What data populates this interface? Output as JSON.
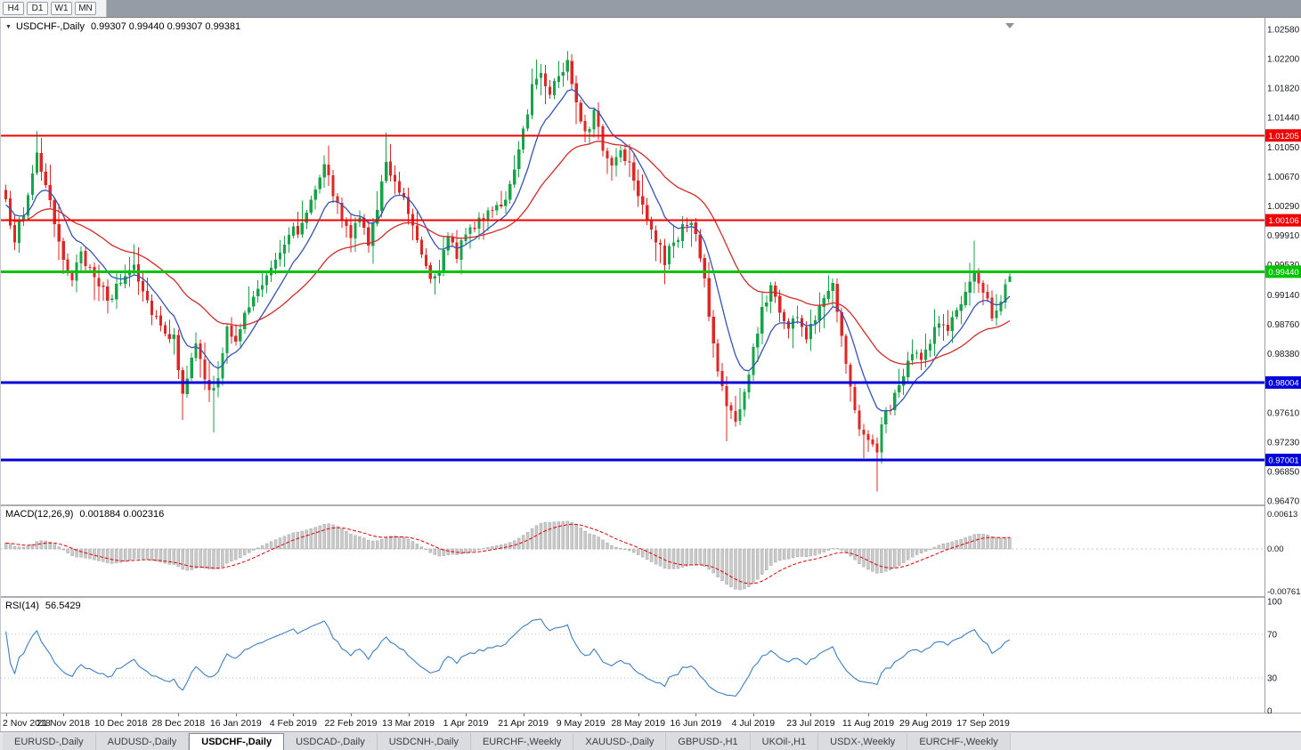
{
  "toolbar": {
    "timeframes": [
      "H4",
      "D1",
      "W1",
      "MN"
    ]
  },
  "chart": {
    "symbol_period": "USDCHF-,Daily",
    "quotes": "0.99307 0.99440 0.99307 0.99381"
  },
  "indicators": {
    "macd": {
      "name": "MACD(12,26,9)",
      "values": "0.001884 0.002316",
      "axis_labels": [
        "0.00613",
        "0.00",
        "-0.007612"
      ]
    },
    "rsi": {
      "name": "RSI(14)",
      "value": "56.5429",
      "axis_labels": [
        "100",
        "70",
        "30",
        "0"
      ],
      "levels": [
        70,
        30
      ]
    }
  },
  "price_axis": {
    "ticks": [
      "1.02580",
      "1.02200",
      "1.01820",
      "1.01440",
      "1.01050",
      "1.00670",
      "1.00290",
      "0.99910",
      "0.99530",
      "0.99140",
      "0.98760",
      "0.98380",
      "0.97610",
      "0.97230",
      "0.96850",
      "0.96470"
    ]
  },
  "levels": [
    {
      "price": 1.01205,
      "label": "1.01205",
      "color": "#f00000",
      "width": 2,
      "kind": "resistance"
    },
    {
      "price": 1.00106,
      "label": "1.00106",
      "color": "#f00000",
      "width": 2,
      "kind": "resistance"
    },
    {
      "price": 0.9944,
      "label": "0.99440",
      "color": "#00c400",
      "width": 3,
      "kind": "current-level"
    },
    {
      "price": 0.98004,
      "label": "0.98004",
      "color": "#0000dc",
      "width": 3,
      "kind": "support"
    },
    {
      "price": 0.97001,
      "label": "0.97001",
      "color": "#0000dc",
      "width": 3,
      "kind": "support"
    }
  ],
  "date_axis": [
    {
      "label": "2 Nov 2018",
      "i": 0
    },
    {
      "label": "21 Nov 2018",
      "i": 13
    },
    {
      "label": "10 Dec 2018",
      "i": 26
    },
    {
      "label": "28 Dec 2018",
      "i": 39
    },
    {
      "label": "16 Jan 2019",
      "i": 52
    },
    {
      "label": "4 Feb 2019",
      "i": 65
    },
    {
      "label": "22 Feb 2019",
      "i": 78
    },
    {
      "label": "13 Mar 2019",
      "i": 91
    },
    {
      "label": "1 Apr 2019",
      "i": 104
    },
    {
      "label": "21 Apr 2019",
      "i": 117
    },
    {
      "label": "9 May 2019",
      "i": 130
    },
    {
      "label": "28 May 2019",
      "i": 143
    },
    {
      "label": "16 Jun 2019",
      "i": 156
    },
    {
      "label": "4 Jul 2019",
      "i": 169
    },
    {
      "label": "23 Jul 2019",
      "i": 182
    },
    {
      "label": "11 Aug 2019",
      "i": 195
    },
    {
      "label": "29 Aug 2019",
      "i": 208
    },
    {
      "label": "17 Sep 2019",
      "i": 221
    }
  ],
  "tabs": [
    {
      "label": "EURUSD-,Daily",
      "active": false
    },
    {
      "label": "AUDUSD-,Daily",
      "active": false
    },
    {
      "label": "USDCHF-,Daily",
      "active": true
    },
    {
      "label": "USDCAD-,Daily",
      "active": false
    },
    {
      "label": "USDCNH-,Daily",
      "active": false
    },
    {
      "label": "EURCHF-,Weekly",
      "active": false
    },
    {
      "label": "XAUUSD-,Daily",
      "active": false
    },
    {
      "label": "GBPUSD-,H1",
      "active": false
    },
    {
      "label": "UKOil-,H1",
      "active": false
    },
    {
      "label": "USDX-,Weekly",
      "active": false
    },
    {
      "label": "EURCHF-,Weekly",
      "active": false
    }
  ],
  "colors": {
    "candle_up": "#17a348",
    "candle_down": "#e02525",
    "ma_fast": "#3353b8",
    "ma_slow": "#d42a2a",
    "macd_hist": "#c9c9c9",
    "macd_hist_edge": "#9b9b9b",
    "macd_signal": "#e00000",
    "rsi_line": "#3e7fc1",
    "level_red": "#f00000",
    "level_green": "#00c400",
    "level_blue": "#0000dc",
    "badge_text": "#ffffff"
  },
  "chart_data": {
    "type": "candlestick",
    "symbol": "USDCHF-",
    "period": "Daily",
    "price_range": [
      0.9647,
      1.0258
    ],
    "candle_count": 228,
    "current_ohlc": {
      "open": 0.99307,
      "high": 0.9944,
      "low": 0.99307,
      "close": 0.99381
    },
    "horizontal_levels": [
      1.01205,
      1.00106,
      0.9944,
      0.98004,
      0.97001
    ],
    "anchors": [
      [
        0,
        1.003
      ],
      [
        2,
        0.999
      ],
      [
        4,
        1.0015
      ],
      [
        5,
        1.0045
      ],
      [
        7,
        1.01
      ],
      [
        9,
        1.0055
      ],
      [
        12,
        0.9975
      ],
      [
        15,
        0.9938
      ],
      [
        17,
        0.9962
      ],
      [
        20,
        0.9945
      ],
      [
        23,
        0.9902
      ],
      [
        26,
        0.9932
      ],
      [
        29,
        0.9955
      ],
      [
        32,
        0.9906
      ],
      [
        35,
        0.9876
      ],
      [
        38,
        0.9856
      ],
      [
        40,
        0.9792
      ],
      [
        43,
        0.9846
      ],
      [
        46,
        0.9788
      ],
      [
        48,
        0.9802
      ],
      [
        50,
        0.9868
      ],
      [
        52,
        0.986
      ],
      [
        55,
        0.9898
      ],
      [
        58,
        0.993
      ],
      [
        61,
        0.9964
      ],
      [
        64,
        0.9996
      ],
      [
        67,
        1.0002
      ],
      [
        70,
        1.0058
      ],
      [
        72,
        1.0088
      ],
      [
        74,
        1.0042
      ],
      [
        76,
        1.0012
      ],
      [
        78,
        0.9992
      ],
      [
        80,
        1.001
      ],
      [
        82,
        0.9986
      ],
      [
        84,
        1.0022
      ],
      [
        86,
        1.0088
      ],
      [
        88,
        1.0064
      ],
      [
        90,
        1.004
      ],
      [
        92,
        1.0006
      ],
      [
        94,
        0.9974
      ],
      [
        96,
        0.9936
      ],
      [
        98,
        0.995
      ],
      [
        100,
        0.9984
      ],
      [
        102,
        0.9966
      ],
      [
        104,
        1.0
      ],
      [
        107,
        1.0006
      ],
      [
        110,
        1.003
      ],
      [
        113,
        1.0036
      ],
      [
        115,
        1.0068
      ],
      [
        117,
        1.0128
      ],
      [
        119,
        1.0184
      ],
      [
        121,
        1.0204
      ],
      [
        123,
        1.0178
      ],
      [
        125,
        1.0198
      ],
      [
        127,
        1.0214
      ],
      [
        129,
        1.0168
      ],
      [
        131,
        1.0126
      ],
      [
        133,
        1.0148
      ],
      [
        135,
        1.0104
      ],
      [
        137,
        1.0082
      ],
      [
        139,
        1.0104
      ],
      [
        141,
        1.0086
      ],
      [
        143,
        1.005
      ],
      [
        145,
        1.0016
      ],
      [
        147,
        0.9986
      ],
      [
        149,
        0.9956
      ],
      [
        151,
        0.9984
      ],
      [
        153,
        1.0
      ],
      [
        155,
        1.0004
      ],
      [
        157,
        0.9968
      ],
      [
        159,
        0.9888
      ],
      [
        161,
        0.9814
      ],
      [
        163,
        0.9776
      ],
      [
        165,
        0.9746
      ],
      [
        167,
        0.9786
      ],
      [
        169,
        0.984
      ],
      [
        171,
        0.9894
      ],
      [
        173,
        0.9926
      ],
      [
        175,
        0.9896
      ],
      [
        177,
        0.987
      ],
      [
        179,
        0.989
      ],
      [
        181,
        0.9856
      ],
      [
        183,
        0.9886
      ],
      [
        185,
        0.9918
      ],
      [
        187,
        0.993
      ],
      [
        189,
        0.9868
      ],
      [
        191,
        0.979
      ],
      [
        193,
        0.9746
      ],
      [
        195,
        0.9722
      ],
      [
        197,
        0.9716
      ],
      [
        199,
        0.9762
      ],
      [
        201,
        0.9782
      ],
      [
        203,
        0.9806
      ],
      [
        205,
        0.984
      ],
      [
        207,
        0.9826
      ],
      [
        209,
        0.9858
      ],
      [
        211,
        0.988
      ],
      [
        213,
        0.9866
      ],
      [
        215,
        0.9896
      ],
      [
        217,
        0.9912
      ],
      [
        219,
        0.9936
      ],
      [
        221,
        0.9924
      ],
      [
        223,
        0.9892
      ],
      [
        225,
        0.9906
      ],
      [
        227,
        0.99381
      ]
    ],
    "extreme_highs": {
      "7": 1.0126,
      "72": 1.0095,
      "86": 1.0124,
      "127": 1.023,
      "155": 1.0012,
      "219": 0.9984,
      "227": 0.9944
    },
    "extreme_lows": {
      "40": 0.9752,
      "47": 0.9736,
      "163": 0.9724,
      "197": 0.9659,
      "227": 0.99307
    }
  }
}
